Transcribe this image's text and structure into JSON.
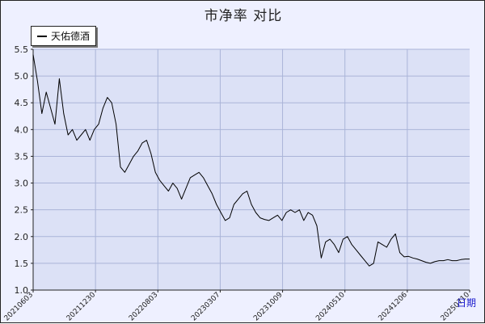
{
  "chart_data": {
    "type": "line",
    "title": "市净率  对比",
    "xlabel": "日期",
    "ylabel": "",
    "ylim": [
      1.0,
      5.5
    ],
    "yticks": [
      "1.0",
      "1.5",
      "2.0",
      "2.5",
      "3.0",
      "3.5",
      "4.0",
      "4.5",
      "5.0",
      "5.5"
    ],
    "xticks": [
      "20210603",
      "20211230",
      "20220803",
      "20230307",
      "20231009",
      "20240510",
      "20241206",
      "20250710"
    ],
    "grid": true,
    "legend_position": "top-left",
    "series": [
      {
        "name": "天佑德酒",
        "color": "#000000",
        "points": [
          [
            0.0,
            5.4
          ],
          [
            0.01,
            4.9
          ],
          [
            0.02,
            4.3
          ],
          [
            0.03,
            4.7
          ],
          [
            0.04,
            4.4
          ],
          [
            0.05,
            4.1
          ],
          [
            0.06,
            4.95
          ],
          [
            0.07,
            4.3
          ],
          [
            0.08,
            3.9
          ],
          [
            0.09,
            4.0
          ],
          [
            0.1,
            3.8
          ],
          [
            0.11,
            3.9
          ],
          [
            0.12,
            4.0
          ],
          [
            0.13,
            3.8
          ],
          [
            0.14,
            4.0
          ],
          [
            0.15,
            4.1
          ],
          [
            0.16,
            4.4
          ],
          [
            0.17,
            4.6
          ],
          [
            0.18,
            4.5
          ],
          [
            0.19,
            4.1
          ],
          [
            0.2,
            3.3
          ],
          [
            0.21,
            3.2
          ],
          [
            0.22,
            3.35
          ],
          [
            0.23,
            3.5
          ],
          [
            0.24,
            3.6
          ],
          [
            0.25,
            3.75
          ],
          [
            0.26,
            3.8
          ],
          [
            0.27,
            3.55
          ],
          [
            0.28,
            3.2
          ],
          [
            0.29,
            3.05
          ],
          [
            0.3,
            2.95
          ],
          [
            0.31,
            2.85
          ],
          [
            0.32,
            3.0
          ],
          [
            0.33,
            2.9
          ],
          [
            0.34,
            2.7
          ],
          [
            0.35,
            2.9
          ],
          [
            0.36,
            3.1
          ],
          [
            0.37,
            3.15
          ],
          [
            0.38,
            3.2
          ],
          [
            0.39,
            3.1
          ],
          [
            0.4,
            2.95
          ],
          [
            0.41,
            2.8
          ],
          [
            0.42,
            2.6
          ],
          [
            0.43,
            2.45
          ],
          [
            0.44,
            2.3
          ],
          [
            0.45,
            2.35
          ],
          [
            0.46,
            2.6
          ],
          [
            0.47,
            2.7
          ],
          [
            0.48,
            2.8
          ],
          [
            0.49,
            2.85
          ],
          [
            0.5,
            2.6
          ],
          [
            0.51,
            2.45
          ],
          [
            0.52,
            2.35
          ],
          [
            0.53,
            2.32
          ],
          [
            0.54,
            2.3
          ],
          [
            0.55,
            2.35
          ],
          [
            0.56,
            2.4
          ],
          [
            0.57,
            2.3
          ],
          [
            0.58,
            2.45
          ],
          [
            0.59,
            2.5
          ],
          [
            0.6,
            2.45
          ],
          [
            0.61,
            2.5
          ],
          [
            0.62,
            2.3
          ],
          [
            0.63,
            2.45
          ],
          [
            0.64,
            2.4
          ],
          [
            0.65,
            2.2
          ],
          [
            0.66,
            1.6
          ],
          [
            0.67,
            1.9
          ],
          [
            0.68,
            1.95
          ],
          [
            0.69,
            1.85
          ],
          [
            0.7,
            1.7
          ],
          [
            0.71,
            1.95
          ],
          [
            0.72,
            2.0
          ],
          [
            0.73,
            1.85
          ],
          [
            0.74,
            1.75
          ],
          [
            0.75,
            1.65
          ],
          [
            0.76,
            1.55
          ],
          [
            0.77,
            1.45
          ],
          [
            0.78,
            1.5
          ],
          [
            0.79,
            1.9
          ],
          [
            0.8,
            1.85
          ],
          [
            0.81,
            1.8
          ],
          [
            0.82,
            1.95
          ],
          [
            0.83,
            2.05
          ],
          [
            0.84,
            1.7
          ],
          [
            0.85,
            1.62
          ],
          [
            0.86,
            1.63
          ],
          [
            0.87,
            1.6
          ],
          [
            0.88,
            1.58
          ],
          [
            0.89,
            1.55
          ],
          [
            0.9,
            1.52
          ],
          [
            0.91,
            1.5
          ],
          [
            0.92,
            1.53
          ],
          [
            0.93,
            1.55
          ],
          [
            0.94,
            1.55
          ],
          [
            0.95,
            1.57
          ],
          [
            0.96,
            1.55
          ],
          [
            0.97,
            1.55
          ],
          [
            0.98,
            1.57
          ],
          [
            0.99,
            1.58
          ],
          [
            1.0,
            1.58
          ]
        ]
      }
    ]
  }
}
